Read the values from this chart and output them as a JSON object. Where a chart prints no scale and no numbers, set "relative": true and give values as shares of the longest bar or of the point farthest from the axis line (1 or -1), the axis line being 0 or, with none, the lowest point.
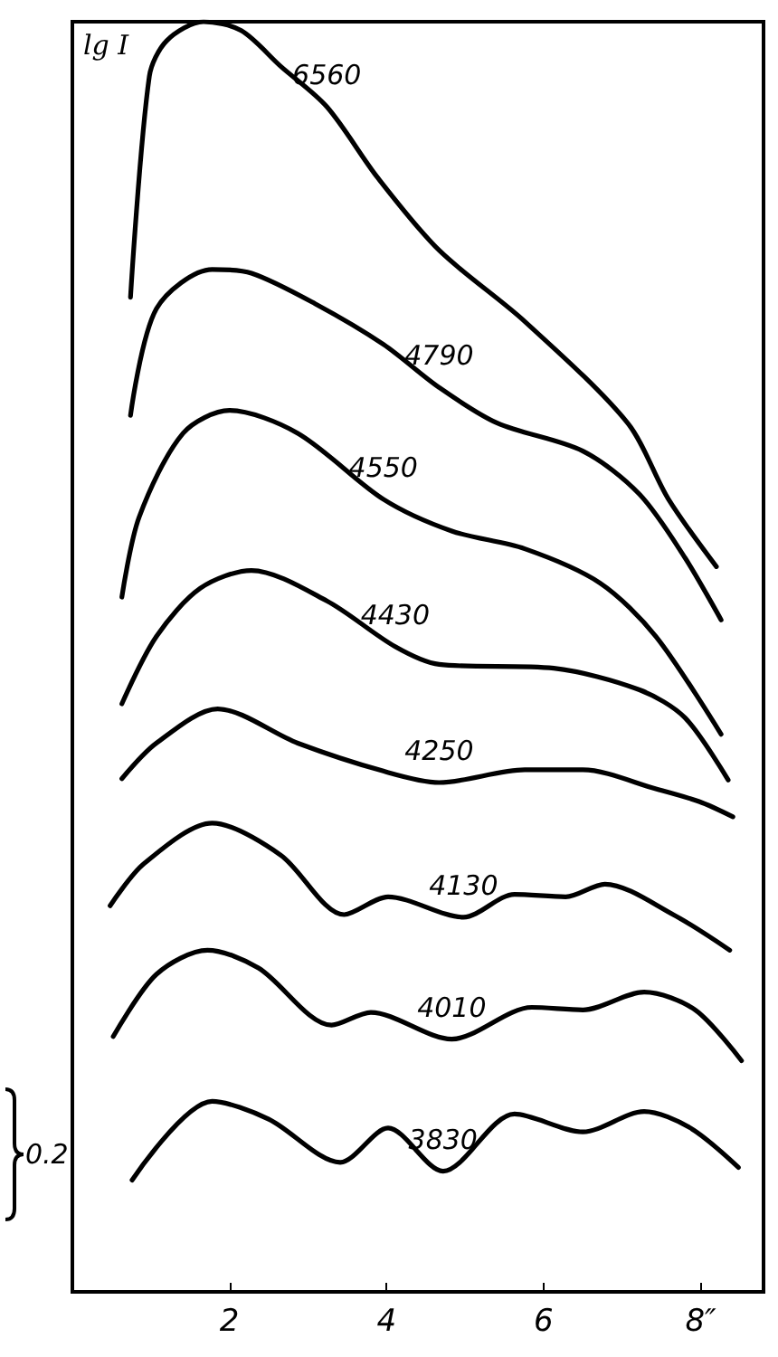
{
  "chart_data": {
    "type": "line",
    "relative": true,
    "ylabel": "lg I",
    "xlim": [
      0,
      8.8
    ],
    "xticks": [
      2,
      4,
      6,
      {
        "value": 8,
        "label": "8″"
      }
    ],
    "grid": false,
    "legend": false,
    "marker": "none",
    "line_style": "solid",
    "annotations": [
      "0.2"
    ],
    "series": [
      {
        "name": "6560",
        "color": "#000000",
        "x": [
          0.74,
          0.98,
          1.2,
          1.67,
          2.15,
          2.65,
          3.24,
          3.89,
          4.67,
          5.76,
          7.07,
          7.59,
          8.2
        ],
        "values": [
          0.783,
          0.957,
          0.985,
          1.0,
          0.993,
          0.965,
          0.933,
          0.877,
          0.82,
          0.764,
          0.684,
          0.624,
          0.571
        ]
      },
      {
        "name": "4790",
        "color": "#000000",
        "x": [
          0.74,
          1.07,
          1.78,
          2.28,
          3.09,
          3.96,
          4.67,
          5.41,
          6.5,
          7.22,
          7.8,
          8.26
        ],
        "values": [
          0.69,
          0.774,
          0.805,
          0.802,
          0.778,
          0.746,
          0.712,
          0.684,
          0.662,
          0.628,
          0.578,
          0.529
        ]
      },
      {
        "name": "4550",
        "color": "#000000",
        "x": [
          0.63,
          0.85,
          1.41,
          2.0,
          2.87,
          3.96,
          4.83,
          5.76,
          6.72,
          7.43,
          8.26
        ],
        "values": [
          0.547,
          0.61,
          0.676,
          0.694,
          0.676,
          0.624,
          0.599,
          0.585,
          0.558,
          0.516,
          0.439
        ]
      },
      {
        "name": "4430",
        "color": "#000000",
        "x": [
          0.63,
          1.07,
          1.63,
          2.28,
          3.24,
          4.11,
          4.67,
          6.13,
          7.22,
          7.8,
          8.35
        ],
        "values": [
          0.463,
          0.516,
          0.554,
          0.568,
          0.544,
          0.508,
          0.494,
          0.491,
          0.474,
          0.452,
          0.403
        ]
      },
      {
        "name": "4250",
        "color": "#000000",
        "x": [
          0.63,
          1.07,
          1.85,
          2.87,
          3.96,
          4.67,
          5.76,
          6.5,
          7.43,
          7.98,
          8.41
        ],
        "values": [
          0.404,
          0.432,
          0.459,
          0.432,
          0.41,
          0.401,
          0.411,
          0.411,
          0.396,
          0.386,
          0.374
        ]
      },
      {
        "name": "4130",
        "color": "#000000",
        "x": [
          0.48,
          0.91,
          1.78,
          2.65,
          3.46,
          4.02,
          4.98,
          5.63,
          6.28,
          6.78,
          7.65,
          8.37
        ],
        "values": [
          0.304,
          0.337,
          0.369,
          0.344,
          0.297,
          0.311,
          0.295,
          0.313,
          0.311,
          0.321,
          0.297,
          0.269
        ]
      },
      {
        "name": "4010",
        "color": "#000000",
        "x": [
          0.52,
          1.07,
          1.72,
          2.37,
          3.3,
          3.8,
          4.83,
          5.85,
          6.5,
          7.28,
          7.93,
          8.52
        ],
        "values": [
          0.201,
          0.25,
          0.269,
          0.255,
          0.21,
          0.22,
          0.199,
          0.224,
          0.222,
          0.236,
          0.222,
          0.182
        ]
      },
      {
        "name": "3830",
        "color": "#000000",
        "x": [
          0.76,
          1.78,
          2.5,
          3.41,
          4.02,
          4.72,
          5.63,
          6.5,
          7.28,
          7.87,
          8.48
        ],
        "values": [
          0.088,
          0.15,
          0.136,
          0.102,
          0.129,
          0.095,
          0.14,
          0.126,
          0.142,
          0.129,
          0.098
        ]
      }
    ]
  }
}
